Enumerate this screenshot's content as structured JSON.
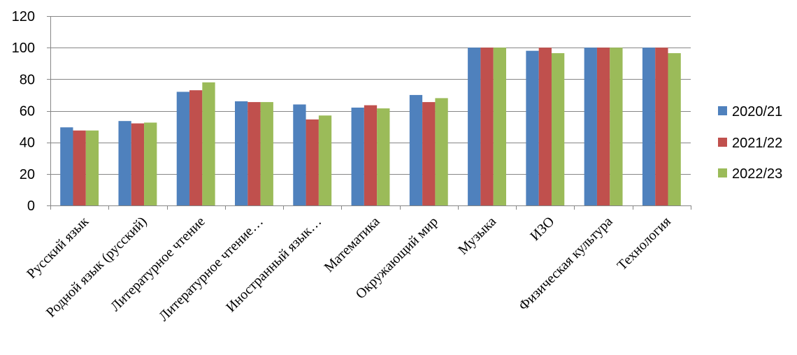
{
  "chart_data": {
    "type": "bar",
    "categories": [
      "Русский язык",
      "Родной язык (русский)",
      "Литературное чтение",
      "Литературное чтение…",
      "Иностранный язык…",
      "Математика",
      "Окружающий мир",
      "Музыка",
      "ИЗО",
      "Физическая культура",
      "Технология"
    ],
    "series": [
      {
        "name": "2020/21",
        "color": "#4F81BD",
        "values": [
          49.5,
          53.5,
          72,
          66,
          64,
          62,
          70,
          100,
          98,
          100,
          100
        ]
      },
      {
        "name": "2021/22",
        "color": "#C0504D",
        "values": [
          47.5,
          52,
          73,
          65.5,
          54.5,
          63.5,
          65.5,
          100,
          100,
          100,
          100
        ]
      },
      {
        "name": "2022/23",
        "color": "#9BBB59",
        "values": [
          47.5,
          52.5,
          78,
          65.5,
          57,
          61.5,
          68,
          100,
          96.5,
          100,
          96.5
        ]
      }
    ],
    "ylim": [
      0,
      120
    ],
    "yticks": [
      0,
      20,
      40,
      60,
      80,
      100,
      120
    ],
    "grid": true,
    "legend_position": "right",
    "title": "",
    "xlabel": "",
    "ylabel": ""
  }
}
